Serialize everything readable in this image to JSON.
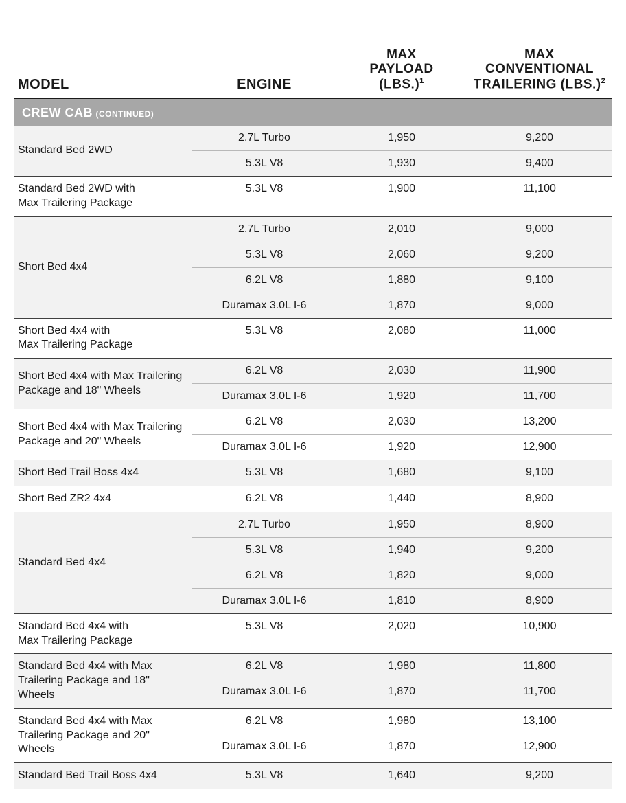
{
  "headers": {
    "model": "MODEL",
    "engine": "ENGINE",
    "payload_l1": "MAX",
    "payload_l2": "PAYLOAD",
    "payload_l3": "(LBS.)",
    "payload_sup": "1",
    "trailer_l1": "MAX",
    "trailer_l2": "CONVENTIONAL",
    "trailer_l3": "TRAILERING (LBS.)",
    "trailer_sup": "2"
  },
  "section": {
    "title": "CREW CAB",
    "sub": "(CONTINUED)"
  },
  "groups": [
    {
      "model": "Standard Bed 2WD",
      "variants": [
        {
          "engine": "2.7L Turbo",
          "payload": "1,950",
          "trailer": "9,200"
        },
        {
          "engine": "5.3L V8",
          "payload": "1,930",
          "trailer": "9,400"
        }
      ]
    },
    {
      "model": "Standard Bed 2WD with\nMax Trailering Package",
      "variants": [
        {
          "engine": "5.3L V8",
          "payload": "1,900",
          "trailer": "11,100"
        }
      ]
    },
    {
      "model": "Short Bed 4x4",
      "variants": [
        {
          "engine": "2.7L Turbo",
          "payload": "2,010",
          "trailer": "9,000"
        },
        {
          "engine": "5.3L V8",
          "payload": "2,060",
          "trailer": "9,200"
        },
        {
          "engine": "6.2L V8",
          "payload": "1,880",
          "trailer": "9,100"
        },
        {
          "engine": "Duramax 3.0L I-6",
          "payload": "1,870",
          "trailer": "9,000"
        }
      ]
    },
    {
      "model": "Short Bed 4x4 with\nMax Trailering Package",
      "variants": [
        {
          "engine": "5.3L V8",
          "payload": "2,080",
          "trailer": "11,000"
        }
      ]
    },
    {
      "model": "Short Bed 4x4 with Max Trailering\nPackage and 18\" Wheels",
      "variants": [
        {
          "engine": "6.2L V8",
          "payload": "2,030",
          "trailer": "11,900"
        },
        {
          "engine": "Duramax 3.0L I-6",
          "payload": "1,920",
          "trailer": "11,700"
        }
      ]
    },
    {
      "model": "Short Bed 4x4 with Max Trailering\nPackage and 20\" Wheels",
      "variants": [
        {
          "engine": "6.2L V8",
          "payload": "2,030",
          "trailer": "13,200"
        },
        {
          "engine": "Duramax 3.0L I-6",
          "payload": "1,920",
          "trailer": "12,900"
        }
      ]
    },
    {
      "model": "Short Bed Trail Boss 4x4",
      "variants": [
        {
          "engine": "5.3L V8",
          "payload": "1,680",
          "trailer": "9,100"
        }
      ]
    },
    {
      "model": "Short Bed ZR2 4x4",
      "variants": [
        {
          "engine": "6.2L V8",
          "payload": "1,440",
          "trailer": "8,900"
        }
      ]
    },
    {
      "model": "Standard Bed 4x4",
      "variants": [
        {
          "engine": "2.7L Turbo",
          "payload": "1,950",
          "trailer": "8,900"
        },
        {
          "engine": "5.3L V8",
          "payload": "1,940",
          "trailer": "9,200"
        },
        {
          "engine": "6.2L V8",
          "payload": "1,820",
          "trailer": "9,000"
        },
        {
          "engine": "Duramax 3.0L I-6",
          "payload": "1,810",
          "trailer": "8,900"
        }
      ]
    },
    {
      "model": "Standard Bed 4x4 with\nMax Trailering Package",
      "variants": [
        {
          "engine": "5.3L V8",
          "payload": "2,020",
          "trailer": "10,900"
        }
      ]
    },
    {
      "model": "Standard Bed 4x4 with Max\nTrailering Package and 18\" Wheels",
      "variants": [
        {
          "engine": "6.2L V8",
          "payload": "1,980",
          "trailer": "11,800"
        },
        {
          "engine": "Duramax 3.0L I-6",
          "payload": "1,870",
          "trailer": "11,700"
        }
      ]
    },
    {
      "model": "Standard Bed 4x4 with Max\nTrailering Package and 20\" Wheels",
      "variants": [
        {
          "engine": "6.2L V8",
          "payload": "1,980",
          "trailer": "13,100"
        },
        {
          "engine": "Duramax 3.0L I-6",
          "payload": "1,870",
          "trailer": "12,900"
        }
      ]
    },
    {
      "model": "Standard Bed Trail Boss 4x4",
      "variants": [
        {
          "engine": "5.3L V8",
          "payload": "1,640",
          "trailer": "9,200"
        }
      ]
    }
  ],
  "style": {
    "row_alt_bg": "#f2f2f2",
    "row_bg": "#ffffff",
    "section_bg": "#a7a7a7",
    "header_border": "#1a1a1a",
    "group_border": "#404040",
    "variant_border": "#b8b8b8",
    "text_color": "#1a1a1a",
    "section_text": "#ffffff",
    "th_fontsize": 20,
    "cell_fontsize": 16,
    "col_widths": {
      "model": 260,
      "engine": 210,
      "payload": 190
    }
  }
}
